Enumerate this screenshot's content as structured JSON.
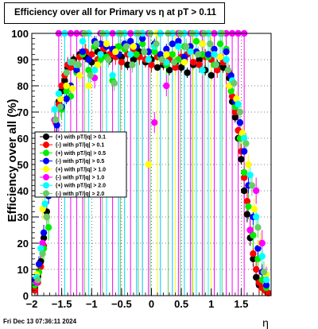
{
  "title": "Efficiency over all for Primary vs   η at pT > 0.11",
  "footer": "Fri Dec 13 07:36:11 2024",
  "chart_data": {
    "type": "scatter",
    "title": "Efficiency over all for Primary vs   η at pT > 0.11",
    "xlabel": "η",
    "ylabel": "Efficiency over all (%)",
    "xlim": [
      -2.0,
      2.0
    ],
    "ylim": [
      0,
      100
    ],
    "xticks": [
      -2,
      -1.5,
      -1,
      -0.5,
      0,
      0.5,
      1,
      1.5
    ],
    "xtick_labels": [
      "−2",
      "−1.5",
      "−1",
      "−0.5",
      "0",
      "0.5",
      "1",
      "1.5"
    ],
    "yticks": [
      0,
      10,
      20,
      30,
      40,
      50,
      60,
      70,
      80,
      90,
      100
    ],
    "grid": true,
    "legend_position": "left-center",
    "series": [
      {
        "name": "(+) with pT/|q| > 0.1",
        "color": "#000000",
        "x": [
          -1.95,
          -1.9,
          -1.85,
          -1.8,
          -1.75,
          -1.7,
          -1.65,
          -1.6,
          -1.55,
          -1.5,
          -1.45,
          -1.4,
          -1.35,
          -1.3,
          -1.2,
          -1.1,
          -1.0,
          -0.9,
          -0.8,
          -0.7,
          -0.6,
          -0.5,
          -0.4,
          -0.3,
          -0.2,
          -0.1,
          0.0,
          0.1,
          0.2,
          0.3,
          0.4,
          0.5,
          0.6,
          0.7,
          0.8,
          0.9,
          1.0,
          1.1,
          1.2,
          1.3,
          1.35,
          1.4,
          1.45,
          1.5,
          1.55,
          1.6,
          1.65,
          1.7,
          1.75,
          1.8,
          1.85,
          1.9,
          1.95
        ],
        "y": [
          3,
          7,
          13,
          22,
          32,
          45,
          56,
          67,
          74,
          78,
          82,
          87,
          89,
          90,
          92,
          91,
          89,
          93,
          92,
          90,
          94,
          91,
          88,
          90,
          93,
          89,
          90,
          87,
          88,
          86,
          89,
          87,
          85,
          88,
          90,
          86,
          84,
          88,
          87,
          83,
          74,
          68,
          60,
          52,
          40,
          31,
          22,
          14,
          7,
          4,
          3,
          2,
          1
        ]
      },
      {
        "name": "(-) with pT/|q| > 0.1",
        "color": "#ff0000",
        "x": [
          -1.95,
          -1.9,
          -1.85,
          -1.8,
          -1.75,
          -1.7,
          -1.65,
          -1.6,
          -1.55,
          -1.5,
          -1.45,
          -1.4,
          -1.35,
          -1.3,
          -1.2,
          -1.1,
          -1.0,
          -0.9,
          -0.8,
          -0.7,
          -0.6,
          -0.5,
          -0.4,
          -0.3,
          -0.2,
          -0.1,
          0.0,
          0.1,
          0.2,
          0.3,
          0.4,
          0.5,
          0.6,
          0.7,
          0.8,
          0.9,
          1.0,
          1.1,
          1.2,
          1.3,
          1.35,
          1.4,
          1.45,
          1.5,
          1.55,
          1.6,
          1.65,
          1.7,
          1.75,
          1.8,
          1.85,
          1.9,
          1.95
        ],
        "y": [
          2,
          5,
          11,
          19,
          30,
          44,
          57,
          66,
          73,
          80,
          84,
          88,
          87,
          89,
          91,
          93,
          92,
          90,
          94,
          92,
          91,
          89,
          92,
          94,
          91,
          90,
          88,
          91,
          89,
          90,
          87,
          91,
          92,
          89,
          88,
          91,
          90,
          86,
          89,
          85,
          76,
          70,
          63,
          55,
          45,
          36,
          25,
          16,
          10,
          5,
          3,
          2,
          1
        ]
      },
      {
        "name": "(+) with pT/|q| > 0.5",
        "color": "#00ee00",
        "x": [
          -1.95,
          -1.88,
          -1.8,
          -1.72,
          -1.65,
          -1.58,
          -1.5,
          -1.42,
          -1.35,
          -1.25,
          -1.15,
          -1.05,
          -0.95,
          -0.85,
          -0.75,
          -0.65,
          -0.55,
          -0.45,
          -0.35,
          -0.25,
          -0.15,
          -0.05,
          0.05,
          0.15,
          0.25,
          0.35,
          0.45,
          0.55,
          0.65,
          0.75,
          0.85,
          0.95,
          1.05,
          1.15,
          1.25,
          1.33,
          1.4,
          1.48,
          1.55,
          1.62,
          1.7,
          1.78,
          1.85,
          1.92
        ],
        "y": [
          4,
          9,
          18,
          26,
          48,
          60,
          71,
          78,
          76,
          85,
          92,
          86,
          95,
          90,
          91,
          82,
          95,
          94,
          97,
          92,
          96,
          90,
          93,
          91,
          88,
          92,
          90,
          95,
          93,
          97,
          92,
          91,
          88,
          96,
          94,
          78,
          72,
          60,
          47,
          34,
          23,
          14,
          6,
          3
        ]
      },
      {
        "name": "(-) with pT/|q| > 0.5",
        "color": "#0000ff",
        "x": [
          -1.95,
          -1.88,
          -1.8,
          -1.72,
          -1.65,
          -1.58,
          -1.5,
          -1.42,
          -1.35,
          -1.25,
          -1.15,
          -1.05,
          -0.95,
          -0.85,
          -0.75,
          -0.65,
          -0.55,
          -0.45,
          -0.35,
          -0.25,
          -0.15,
          -0.05,
          0.05,
          0.15,
          0.25,
          0.35,
          0.45,
          0.55,
          0.65,
          0.75,
          0.85,
          0.95,
          1.05,
          1.15,
          1.25,
          1.33,
          1.4,
          1.48,
          1.55,
          1.62,
          1.7,
          1.78,
          1.85,
          1.92
        ],
        "y": [
          6,
          12,
          24,
          38,
          52,
          65,
          72,
          75,
          80,
          86,
          93,
          90,
          97,
          96,
          95,
          94,
          92,
          96,
          97,
          95,
          98,
          93,
          96,
          92,
          94,
          96,
          97,
          91,
          95,
          93,
          96,
          92,
          94,
          91,
          93,
          84,
          74,
          66,
          55,
          42,
          30,
          18,
          9,
          4
        ]
      },
      {
        "name": "(+) with pT/|q| > 1.0",
        "color": "#ffff00",
        "x": [
          -1.92,
          -1.82,
          -1.72,
          -1.62,
          -1.52,
          -1.42,
          -1.32,
          -1.2,
          -1.05,
          -0.9,
          -0.75,
          -0.6,
          -0.45,
          -0.3,
          -0.15,
          -0.05,
          0.1,
          0.25,
          0.4,
          0.55,
          0.7,
          0.85,
          1.0,
          1.15,
          1.3,
          1.42,
          1.52,
          1.62,
          1.72,
          1.82,
          1.92
        ],
        "y": [
          8,
          33,
          52,
          67,
          75,
          80,
          79,
          84,
          80,
          88,
          96,
          93,
          100,
          95,
          100,
          50,
          100,
          92,
          100,
          89,
          100,
          96,
          100,
          91,
          80,
          75,
          62,
          50,
          33,
          20,
          8
        ]
      },
      {
        "name": "(-) with pT/|q| > 1.0",
        "color": "#ff00ff",
        "x": [
          -1.92,
          -1.82,
          -1.72,
          -1.62,
          -1.55,
          -1.45,
          -1.35,
          -1.25,
          -1.15,
          -1.05,
          -0.95,
          -0.85,
          -0.75,
          -0.65,
          -0.55,
          -0.45,
          -0.35,
          -0.25,
          -0.15,
          -0.05,
          0.05,
          0.15,
          0.25,
          0.35,
          0.45,
          0.55,
          0.65,
          0.75,
          0.85,
          0.95,
          1.05,
          1.15,
          1.25,
          1.35,
          1.45,
          1.55,
          1.65,
          1.75,
          1.85,
          1.92
        ],
        "y": [
          5,
          20,
          44,
          67,
          100,
          100,
          100,
          100,
          100,
          100,
          83,
          100,
          100,
          100,
          100,
          100,
          100,
          100,
          100,
          100,
          66,
          100,
          80,
          100,
          100,
          100,
          100,
          100,
          100,
          100,
          100,
          100,
          100,
          100,
          100,
          100,
          25,
          40,
          20,
          6
        ]
      },
      {
        "name": "(+) with pT/|q| > 2.0",
        "color": "#00ffff",
        "x": [
          -1.92,
          -1.85,
          -1.78,
          -1.7,
          -1.62,
          -1.55,
          -1.45,
          -1.35,
          -1.25,
          -1.15,
          -1.05,
          -0.95,
          -0.85,
          -0.75,
          -0.65,
          -0.55,
          -0.45,
          -0.35,
          -0.25,
          -0.15,
          -0.05,
          0.05,
          0.15,
          0.25,
          0.35,
          0.45,
          0.55,
          0.65,
          0.75,
          0.85,
          0.95,
          1.05,
          1.15,
          1.25,
          1.35,
          1.45,
          1.55,
          1.65,
          1.75,
          1.85,
          1.92
        ],
        "y": [
          7,
          18,
          35,
          48,
          71,
          77,
          100,
          89,
          88,
          97,
          100,
          86,
          92,
          100,
          84,
          100,
          100,
          92,
          100,
          100,
          90,
          95,
          100,
          89,
          100,
          95,
          100,
          93,
          100,
          86,
          100,
          92,
          100,
          90,
          82,
          73,
          60,
          46,
          30,
          15,
          6
        ]
      },
      {
        "name": "(-) with pT/|q| > 2.0",
        "color": "#66cc66",
        "x": [
          -1.9,
          -1.82,
          -1.75,
          -1.68,
          -1.6,
          -1.52,
          -1.42,
          -1.32,
          -1.22,
          -1.12,
          -1.02,
          -0.92,
          -0.82,
          -0.72,
          -0.62,
          -0.52,
          -0.42,
          -0.32,
          -0.22,
          -0.12,
          -0.02,
          0.08,
          0.18,
          0.28,
          0.38,
          0.48,
          0.58,
          0.68,
          0.78,
          0.88,
          0.98,
          1.08,
          1.18,
          1.28,
          1.38,
          1.48,
          1.58,
          1.68,
          1.78,
          1.88
        ],
        "y": [
          6,
          16,
          30,
          46,
          67,
          72,
          85,
          89,
          88,
          100,
          84,
          96,
          100,
          90,
          81,
          100,
          95,
          88,
          100,
          93,
          100,
          96,
          90,
          100,
          89,
          100,
          95,
          100,
          92,
          100,
          96,
          88,
          100,
          86,
          81,
          70,
          58,
          42,
          26,
          9
        ]
      }
    ]
  },
  "legend": {
    "entries": [
      {
        "label": "(+) with pT/|q| > 0.1",
        "color": "#000000"
      },
      {
        "label": "(-) with pT/|q| > 0.1",
        "color": "#ff0000"
      },
      {
        "label": "(+) with pT/|q| > 0.5",
        "color": "#00ee00"
      },
      {
        "label": "(-) with pT/|q| > 0.5",
        "color": "#0000ff"
      },
      {
        "label": "(+) with pT/|q| > 1.0",
        "color": "#ffff00"
      },
      {
        "label": "(-) with pT/|q| > 1.0",
        "color": "#ff00ff"
      },
      {
        "label": "(+) with pT/|q| > 2.0",
        "color": "#00ffff"
      },
      {
        "label": "(-) with pT/|q| > 2.0",
        "color": "#66cc66"
      }
    ]
  }
}
